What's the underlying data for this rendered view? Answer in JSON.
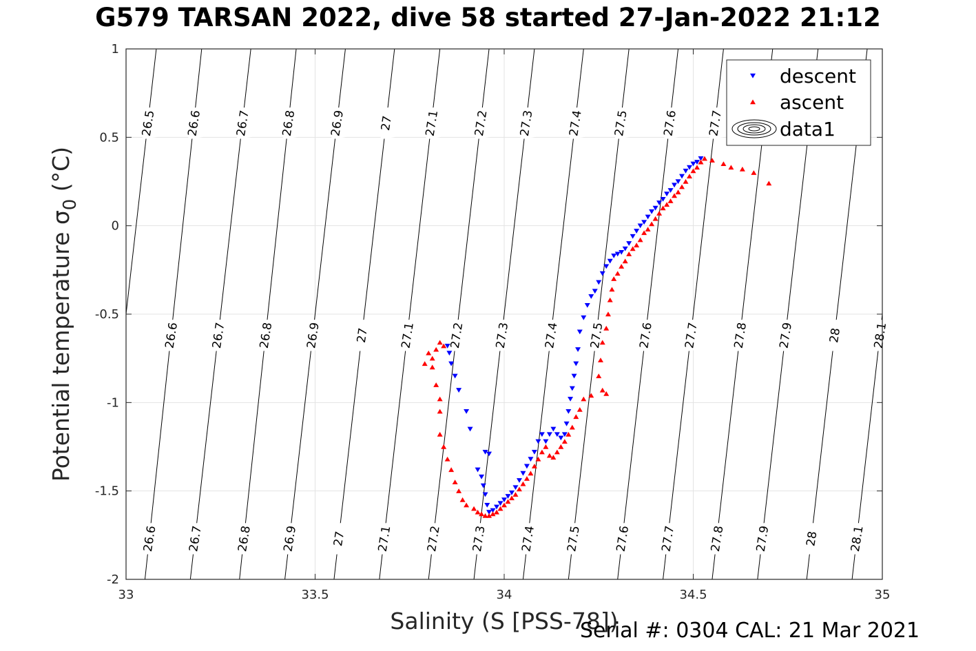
{
  "title": "G579 TARSAN 2022, dive 58 started 27-Jan-2022 21:12",
  "footer": "Serial #: 0304  CAL: 21 Mar 2021",
  "chart_data": {
    "type": "scatter",
    "xlabel": "Salinity (S [PSS-78])",
    "ylabel_main": "Potential temperature σ",
    "ylabel_sub": "0",
    "ylabel_unit": "(°C)",
    "xlim": [
      33,
      35
    ],
    "ylim": [
      -2,
      1
    ],
    "xticks": [
      "33",
      "33.5",
      "34",
      "34.5",
      "35"
    ],
    "yticks": [
      "-2",
      "-1.5",
      "-1",
      "-0.5",
      "0",
      "0.5",
      "1"
    ],
    "grid": true,
    "legend_position": "top-right",
    "legend": [
      {
        "label": "descent",
        "marker": "triangle-down",
        "color": "#0000ff"
      },
      {
        "label": "ascent",
        "marker": "triangle-up",
        "color": "#ff0000"
      },
      {
        "label": "data1",
        "marker": "contour",
        "color": "#000000"
      }
    ],
    "density_contours": {
      "levels": [
        "26.5",
        "26.6",
        "26.7",
        "26.8",
        "26.9",
        "27",
        "27.1",
        "27.2",
        "27.3",
        "27.4",
        "27.5",
        "27.6",
        "27.7",
        "27.8",
        "27.9",
        "28",
        "28.1"
      ],
      "salinity_at_top": [
        33.08,
        33.2,
        33.33,
        33.45,
        33.58,
        33.71,
        33.83,
        33.96,
        34.08,
        34.21,
        34.33,
        34.46,
        34.58,
        34.71,
        34.83,
        34.96,
        35.08
      ],
      "salinity_at_bottom": [
        32.92,
        33.05,
        33.17,
        33.3,
        33.42,
        33.55,
        33.67,
        33.8,
        33.92,
        34.05,
        34.17,
        34.3,
        34.42,
        34.55,
        34.67,
        34.8,
        34.92
      ],
      "labels_top_row": [
        "26.5",
        "26.6",
        "26.7",
        "26.8",
        "26.9",
        "27",
        "27.1",
        "27.2",
        "27.3",
        "27.4",
        "27.5",
        "27.6",
        "27.7"
      ],
      "labels_middle_row": [
        "26.6",
        "26.7",
        "26.8",
        "26.9",
        "27",
        "27.1",
        "27.2",
        "27.3",
        "27.4",
        "27.5",
        "27.6",
        "27.7",
        "27.8",
        "27.9",
        "28",
        "28.1"
      ],
      "labels_bottom_row": [
        "26.6",
        "26.7",
        "26.8",
        "26.9",
        "27",
        "27.1",
        "27.2",
        "27.3",
        "27.4",
        "27.5",
        "27.6",
        "27.7",
        "27.8",
        "27.9",
        "28",
        "28.1"
      ]
    },
    "series": [
      {
        "name": "descent",
        "color": "#0000ff",
        "marker": "triangle-down",
        "points": [
          [
            34.52,
            0.38
          ],
          [
            34.51,
            0.36
          ],
          [
            34.5,
            0.35
          ],
          [
            34.49,
            0.33
          ],
          [
            34.48,
            0.31
          ],
          [
            34.47,
            0.28
          ],
          [
            34.46,
            0.25
          ],
          [
            34.45,
            0.23
          ],
          [
            34.44,
            0.2
          ],
          [
            34.43,
            0.18
          ],
          [
            34.42,
            0.15
          ],
          [
            34.41,
            0.13
          ],
          [
            34.4,
            0.1
          ],
          [
            34.39,
            0.08
          ],
          [
            34.38,
            0.05
          ],
          [
            34.37,
            0.02
          ],
          [
            34.36,
            0.0
          ],
          [
            34.35,
            -0.03
          ],
          [
            34.34,
            -0.06
          ],
          [
            34.33,
            -0.1
          ],
          [
            34.32,
            -0.13
          ],
          [
            34.31,
            -0.15
          ],
          [
            34.3,
            -0.16
          ],
          [
            34.29,
            -0.17
          ],
          [
            34.28,
            -0.2
          ],
          [
            34.27,
            -0.23
          ],
          [
            34.26,
            -0.27
          ],
          [
            34.25,
            -0.32
          ],
          [
            34.24,
            -0.37
          ],
          [
            34.23,
            -0.4
          ],
          [
            34.22,
            -0.45
          ],
          [
            34.21,
            -0.52
          ],
          [
            34.2,
            -0.6
          ],
          [
            34.195,
            -0.7
          ],
          [
            34.19,
            -0.78
          ],
          [
            34.185,
            -0.85
          ],
          [
            34.18,
            -0.92
          ],
          [
            34.175,
            -0.98
          ],
          [
            34.17,
            -1.05
          ],
          [
            34.165,
            -1.12
          ],
          [
            34.16,
            -1.18
          ],
          [
            34.15,
            -1.2
          ],
          [
            34.14,
            -1.18
          ],
          [
            34.13,
            -1.15
          ],
          [
            34.12,
            -1.18
          ],
          [
            34.11,
            -1.22
          ],
          [
            34.1,
            -1.18
          ],
          [
            34.09,
            -1.22
          ],
          [
            34.08,
            -1.28
          ],
          [
            34.07,
            -1.32
          ],
          [
            34.06,
            -1.36
          ],
          [
            34.05,
            -1.4
          ],
          [
            34.04,
            -1.44
          ],
          [
            34.03,
            -1.48
          ],
          [
            34.02,
            -1.51
          ],
          [
            34.01,
            -1.53
          ],
          [
            34.0,
            -1.55
          ],
          [
            33.99,
            -1.57
          ],
          [
            33.98,
            -1.59
          ],
          [
            33.97,
            -1.61
          ],
          [
            33.96,
            -1.62
          ],
          [
            33.955,
            -1.58
          ],
          [
            33.95,
            -1.52
          ],
          [
            33.945,
            -1.47
          ],
          [
            33.94,
            -1.42
          ],
          [
            33.93,
            -1.38
          ],
          [
            33.95,
            -1.28
          ],
          [
            33.96,
            -1.29
          ],
          [
            33.91,
            -1.15
          ],
          [
            33.9,
            -1.05
          ],
          [
            33.88,
            -0.93
          ],
          [
            33.87,
            -0.85
          ],
          [
            33.86,
            -0.78
          ],
          [
            33.855,
            -0.72
          ],
          [
            33.85,
            -0.68
          ]
        ]
      },
      {
        "name": "ascent",
        "color": "#ff0000",
        "marker": "triangle-up",
        "points": [
          [
            34.7,
            0.24
          ],
          [
            34.66,
            0.3
          ],
          [
            34.63,
            0.32
          ],
          [
            34.6,
            0.33
          ],
          [
            34.58,
            0.35
          ],
          [
            34.55,
            0.37
          ],
          [
            34.53,
            0.38
          ],
          [
            34.52,
            0.36
          ],
          [
            34.51,
            0.33
          ],
          [
            34.5,
            0.31
          ],
          [
            34.49,
            0.28
          ],
          [
            34.48,
            0.25
          ],
          [
            34.47,
            0.22
          ],
          [
            34.46,
            0.19
          ],
          [
            34.45,
            0.17
          ],
          [
            34.44,
            0.14
          ],
          [
            34.43,
            0.12
          ],
          [
            34.42,
            0.1
          ],
          [
            34.41,
            0.07
          ],
          [
            34.4,
            0.04
          ],
          [
            34.39,
            0.01
          ],
          [
            34.38,
            -0.02
          ],
          [
            34.37,
            -0.04
          ],
          [
            34.36,
            -0.08
          ],
          [
            34.35,
            -0.11
          ],
          [
            34.34,
            -0.13
          ],
          [
            34.33,
            -0.16
          ],
          [
            34.32,
            -0.2
          ],
          [
            34.31,
            -0.23
          ],
          [
            34.3,
            -0.27
          ],
          [
            34.29,
            -0.3
          ],
          [
            34.285,
            -0.36
          ],
          [
            34.28,
            -0.42
          ],
          [
            34.275,
            -0.5
          ],
          [
            34.27,
            -0.58
          ],
          [
            34.26,
            -0.66
          ],
          [
            34.255,
            -0.76
          ],
          [
            34.25,
            -0.85
          ],
          [
            34.26,
            -0.93
          ],
          [
            34.27,
            -0.95
          ],
          [
            34.23,
            -0.96
          ],
          [
            34.21,
            -0.98
          ],
          [
            34.2,
            -1.04
          ],
          [
            34.19,
            -1.08
          ],
          [
            34.18,
            -1.14
          ],
          [
            34.17,
            -1.18
          ],
          [
            34.16,
            -1.22
          ],
          [
            34.15,
            -1.25
          ],
          [
            34.14,
            -1.28
          ],
          [
            34.13,
            -1.31
          ],
          [
            34.12,
            -1.3
          ],
          [
            34.11,
            -1.25
          ],
          [
            34.1,
            -1.28
          ],
          [
            34.09,
            -1.32
          ],
          [
            34.08,
            -1.36
          ],
          [
            34.07,
            -1.4
          ],
          [
            34.06,
            -1.43
          ],
          [
            34.05,
            -1.46
          ],
          [
            34.04,
            -1.49
          ],
          [
            34.03,
            -1.52
          ],
          [
            34.02,
            -1.54
          ],
          [
            34.01,
            -1.56
          ],
          [
            34.0,
            -1.58
          ],
          [
            33.99,
            -1.6
          ],
          [
            33.98,
            -1.62
          ],
          [
            33.97,
            -1.63
          ],
          [
            33.96,
            -1.64
          ],
          [
            33.95,
            -1.64
          ],
          [
            33.94,
            -1.63
          ],
          [
            33.93,
            -1.62
          ],
          [
            33.92,
            -1.6
          ],
          [
            33.9,
            -1.58
          ],
          [
            33.89,
            -1.55
          ],
          [
            33.88,
            -1.5
          ],
          [
            33.87,
            -1.45
          ],
          [
            33.86,
            -1.38
          ],
          [
            33.85,
            -1.32
          ],
          [
            33.84,
            -1.25
          ],
          [
            33.83,
            -1.18
          ],
          [
            33.83,
            -1.05
          ],
          [
            33.83,
            -0.98
          ],
          [
            33.82,
            -0.9
          ],
          [
            33.81,
            -0.8
          ],
          [
            33.81,
            -0.75
          ],
          [
            33.82,
            -0.7
          ],
          [
            33.83,
            -0.66
          ],
          [
            33.84,
            -0.68
          ],
          [
            33.8,
            -0.72
          ],
          [
            33.79,
            -0.78
          ]
        ]
      }
    ]
  }
}
